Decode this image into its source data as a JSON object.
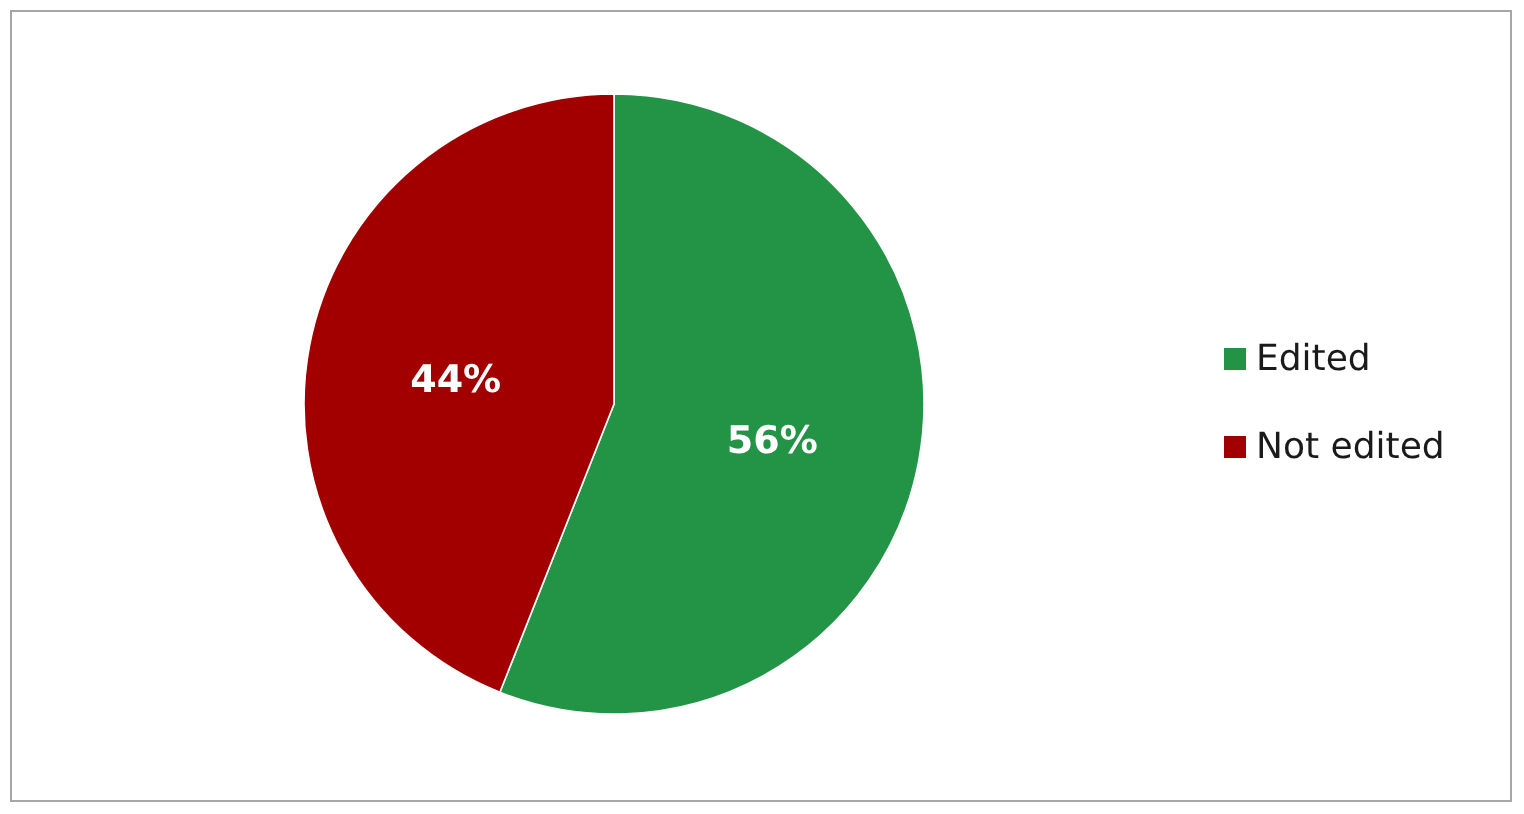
{
  "chart_data": {
    "type": "pie",
    "categories": [
      "Edited",
      "Not edited"
    ],
    "values": [
      56,
      44
    ],
    "colors": [
      "#239446",
      "#a20000"
    ],
    "value_labels": [
      "56%",
      "44%"
    ],
    "legend": "right"
  }
}
